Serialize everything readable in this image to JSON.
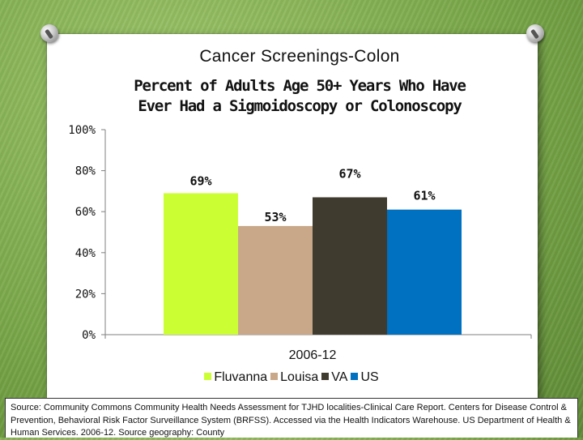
{
  "slide": {
    "title": "Cancer Screenings-Colon",
    "source": "Source: Community Commons Community Health Needs Assessment for TJHD localities-Clinical Care Report. Centers for Disease Control & Prevention, Behavioral Risk Factor Surveillance System (BRFSS). Accessed via the Health Indicators Warehouse. US Department of Health & Human Services. 2006-12. Source geography: County"
  },
  "chart_data": {
    "type": "bar",
    "title": "Percent of Adults Age 50+ Years Who Have Ever Had a Sigmoidoscopy or Colonoscopy",
    "title_lines": [
      "Percent of Adults Age 50+ Years Who Have",
      "Ever Had a Sigmoidoscopy or Colonoscopy"
    ],
    "categories": [
      "2006-12"
    ],
    "series": [
      {
        "name": "Fluvanna",
        "values": [
          69
        ],
        "label": "69%",
        "color": "#ccff33"
      },
      {
        "name": "Louisa",
        "values": [
          53
        ],
        "label": "53%",
        "color": "#c8a888"
      },
      {
        "name": "VA",
        "values": [
          67
        ],
        "label": "67%",
        "color": "#3f3b2e"
      },
      {
        "name": "US",
        "values": [
          61
        ],
        "label": "61%",
        "color": "#0070c0"
      }
    ],
    "ylim": [
      0,
      100
    ],
    "yticks": [
      0,
      20,
      40,
      60,
      80,
      100
    ],
    "ytick_labels": [
      "0%",
      "20%",
      "40%",
      "60%",
      "80%",
      "100%"
    ],
    "xlabel": "",
    "ylabel": "",
    "legend_position": "bottom",
    "grid": false
  }
}
